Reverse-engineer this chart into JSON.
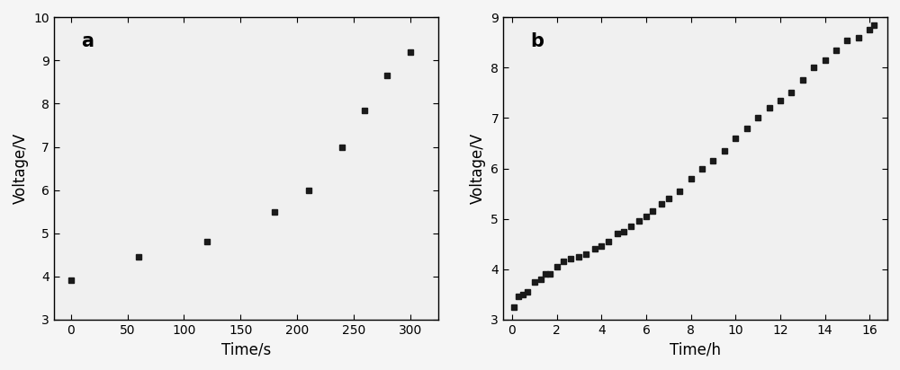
{
  "plot_a": {
    "x": [
      0,
      60,
      120,
      180,
      210,
      240,
      260,
      280,
      300
    ],
    "y": [
      3.9,
      4.45,
      4.8,
      5.5,
      6.0,
      7.0,
      7.85,
      8.65,
      9.2
    ],
    "xlabel": "Time/s",
    "ylabel": "Voltage/V",
    "label": "a",
    "xlim": [
      -15,
      325
    ],
    "ylim": [
      3,
      10
    ],
    "xticks": [
      0,
      50,
      100,
      150,
      200,
      250,
      300
    ],
    "yticks": [
      3,
      4,
      5,
      6,
      7,
      8,
      9,
      10
    ]
  },
  "plot_b": {
    "x": [
      0.1,
      0.3,
      0.5,
      0.7,
      1.0,
      1.3,
      1.5,
      1.7,
      2.0,
      2.3,
      2.6,
      3.0,
      3.3,
      3.7,
      4.0,
      4.3,
      4.7,
      5.0,
      5.3,
      5.7,
      6.0,
      6.3,
      6.7,
      7.0,
      7.5,
      8.0,
      8.5,
      9.0,
      9.5,
      10.0,
      10.5,
      11.0,
      11.5,
      12.0,
      12.5,
      13.0,
      13.5,
      14.0,
      14.5,
      15.0,
      15.5,
      16.0,
      16.2
    ],
    "y": [
      3.25,
      3.45,
      3.5,
      3.55,
      3.75,
      3.8,
      3.9,
      3.9,
      4.05,
      4.15,
      4.2,
      4.25,
      4.3,
      4.4,
      4.45,
      4.55,
      4.7,
      4.75,
      4.85,
      4.95,
      5.05,
      5.15,
      5.3,
      5.4,
      5.55,
      5.8,
      6.0,
      6.15,
      6.35,
      6.6,
      6.8,
      7.0,
      7.2,
      7.35,
      7.5,
      7.75,
      8.0,
      8.15,
      8.35,
      8.55,
      8.6,
      8.75,
      8.85
    ],
    "xlabel": "Time/h",
    "ylabel": "Voltage/V",
    "label": "b",
    "xlim": [
      -0.4,
      16.8
    ],
    "ylim": [
      3,
      9
    ],
    "xticks": [
      0,
      2,
      4,
      6,
      8,
      10,
      12,
      14,
      16
    ],
    "yticks": [
      3,
      4,
      5,
      6,
      7,
      8,
      9
    ]
  },
  "fig_background": "#f5f5f5",
  "plot_background": "#f0f0f0",
  "marker": "s",
  "marker_size": 4.5,
  "marker_color": "#1a1a1a",
  "label_fontsize": 12,
  "tick_fontsize": 10,
  "panel_label_fontsize": 15
}
